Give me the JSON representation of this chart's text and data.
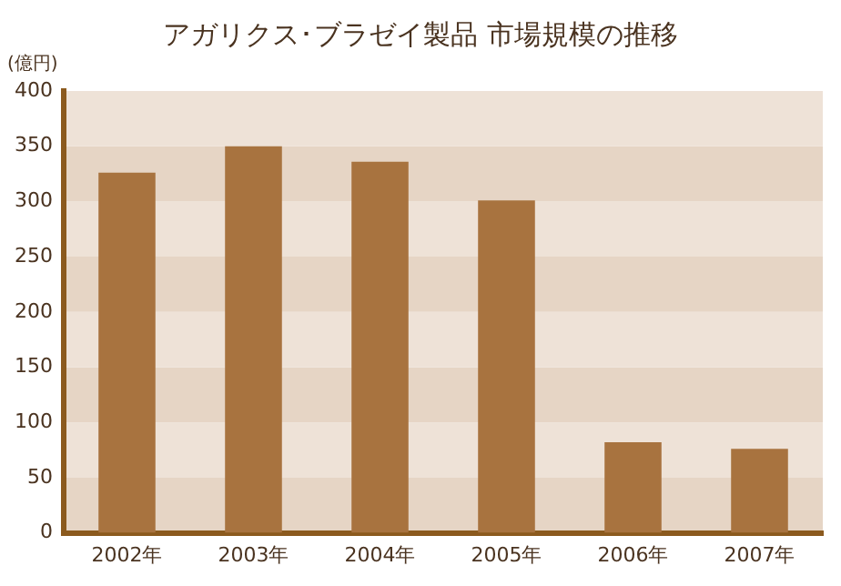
{
  "chart_data": {
    "type": "bar",
    "title": "アガリクス･ブラゼイ製品 市場規模の推移",
    "ylabel": "(億円)",
    "categories": [
      "2002年",
      "2003年",
      "2004年",
      "2005年",
      "2006年",
      "2007年"
    ],
    "values": [
      326,
      350,
      336,
      301,
      82,
      76
    ],
    "color": "#a8733f",
    "ylim": [
      0,
      400
    ],
    "yticks": [
      0,
      50,
      100,
      150,
      200,
      250,
      300,
      350,
      400
    ]
  }
}
